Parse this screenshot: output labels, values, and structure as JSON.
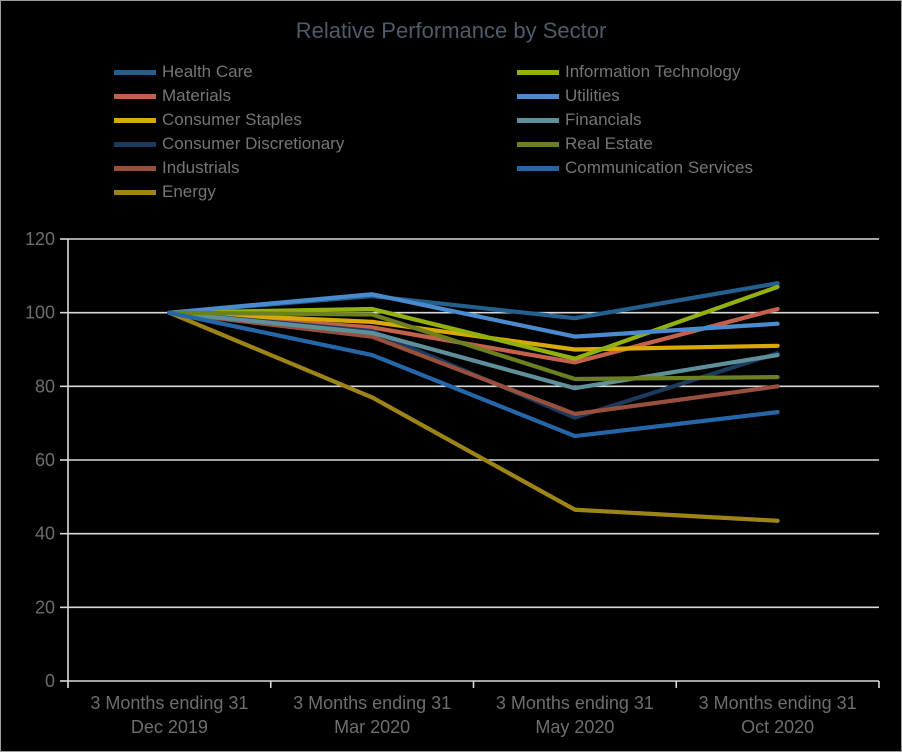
{
  "title": "Relative Performance by Sector",
  "colors": {
    "background": "#000000",
    "gridline": "#d9d9d9",
    "axis_line": "#d9d9d9",
    "axis_text": "#6e6e6e",
    "legend_text": "#757575",
    "title_text": "#4d5b6a",
    "border": "#9e9e9e"
  },
  "chart_data": {
    "type": "line",
    "title": "Relative Performance by Sector",
    "xlabel": "",
    "ylabel": "",
    "grid": true,
    "legend_position": "top, two columns",
    "categories": [
      [
        "3 Months ending 31",
        "Dec 2019"
      ],
      [
        "3 Months ending 31",
        "Mar 2020"
      ],
      [
        "3 Months ending 31",
        "May 2020"
      ],
      [
        "3 Months ending 31",
        "Oct 2020"
      ]
    ],
    "ylim": [
      0,
      120
    ],
    "ytick_interval": 20,
    "ytick_labels": [
      "0",
      "20",
      "40",
      "60",
      "80",
      "100",
      "120"
    ],
    "series": [
      {
        "name": "Health Care",
        "color": "#23608f",
        "legend": "left",
        "values": [
          100,
          104.5,
          98.5,
          108
        ]
      },
      {
        "name": "Materials",
        "color": "#c4614d",
        "legend": "left",
        "values": [
          100,
          96,
          86.5,
          101
        ]
      },
      {
        "name": "Consumer Staples",
        "color": "#d9a905",
        "legend": "left",
        "values": [
          100,
          97.5,
          90,
          91
        ]
      },
      {
        "name": "Consumer Discretionary",
        "color": "#1b3a5c",
        "legend": "left",
        "values": [
          100,
          95,
          71.5,
          89
        ]
      },
      {
        "name": "Industrials",
        "color": "#984f3d",
        "legend": "left",
        "values": [
          100,
          93.5,
          72.5,
          80
        ]
      },
      {
        "name": "Energy",
        "color": "#9e8417",
        "legend": "left",
        "values": [
          100,
          77,
          46.5,
          43.5
        ]
      },
      {
        "name": "Information Technology",
        "color": "#92b10f",
        "legend": "right",
        "values": [
          100,
          101,
          87.5,
          107
        ]
      },
      {
        "name": "Utilities",
        "color": "#4a8bd0",
        "legend": "right",
        "values": [
          100,
          105,
          93.5,
          97
        ]
      },
      {
        "name": "Financials",
        "color": "#5e8f9b",
        "legend": "right",
        "values": [
          100,
          94.5,
          79.5,
          88.5
        ]
      },
      {
        "name": "Real Estate",
        "color": "#6c801f",
        "legend": "right",
        "values": [
          100,
          99.5,
          82,
          82.5
        ]
      },
      {
        "name": "Communication Services",
        "color": "#2566a8",
        "legend": "right",
        "values": [
          100,
          88.5,
          66.5,
          73
        ]
      }
    ]
  }
}
